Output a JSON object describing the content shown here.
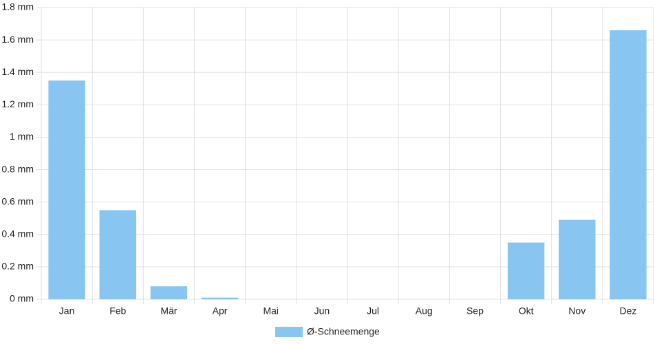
{
  "chart_data": {
    "type": "bar",
    "categories": [
      "Jan",
      "Feb",
      "Mär",
      "Apr",
      "Mai",
      "Jun",
      "Jul",
      "Aug",
      "Sep",
      "Okt",
      "Nov",
      "Dez"
    ],
    "series": [
      {
        "name": "Ø-Schneemenge",
        "color": "#88c5f1",
        "values": [
          1.35,
          0.55,
          0.08,
          0.01,
          0,
          0,
          0,
          0,
          0,
          0.35,
          0.49,
          1.66
        ]
      }
    ],
    "ylim": [
      0,
      1.8
    ],
    "yticks": [
      {
        "value": 0,
        "label": "0 mm"
      },
      {
        "value": 0.2,
        "label": "0.2 mm"
      },
      {
        "value": 0.4,
        "label": "0.4 mm"
      },
      {
        "value": 0.6,
        "label": "0.6 mm"
      },
      {
        "value": 0.8,
        "label": "0.8 mm"
      },
      {
        "value": 1,
        "label": "1 mm"
      },
      {
        "value": 1.2,
        "label": "1.2 mm"
      },
      {
        "value": 1.4,
        "label": "1.4 mm"
      },
      {
        "value": 1.6,
        "label": "1.6 mm"
      },
      {
        "value": 1.8,
        "label": "1.8 mm"
      }
    ],
    "grid": true,
    "legend": "bottom"
  }
}
